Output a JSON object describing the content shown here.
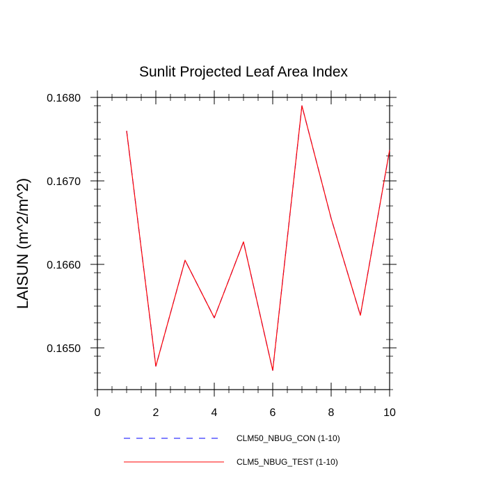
{
  "chart_data": {
    "type": "line",
    "title": "Sunlit Projected Leaf Area Index",
    "xlabel": "",
    "ylabel": "LAISUN  (m^2/m^2)",
    "xlim": [
      0,
      10
    ],
    "ylim": [
      0.1645,
      0.168
    ],
    "x_ticks": [
      0,
      2,
      4,
      6,
      8,
      10
    ],
    "x_tick_labels": [
      "0",
      "2",
      "4",
      "6",
      "8",
      "10"
    ],
    "y_ticks": [
      0.165,
      0.166,
      0.167,
      0.168
    ],
    "y_tick_labels": [
      "0.1650",
      "0.1660",
      "0.1670",
      "0.1680"
    ],
    "grid": false,
    "legend_position": "bottom",
    "x": [
      1,
      2,
      3,
      4,
      5,
      6,
      7,
      8,
      9,
      10
    ],
    "series": [
      {
        "name": "CLM50_NBUG_CON (1-10)",
        "color": "#0000ff",
        "dash": "dashed",
        "values": [
          0.1676,
          0.16478,
          0.16605,
          0.16536,
          0.16627,
          0.16473,
          0.1679,
          0.16655,
          0.16539,
          0.16737
        ]
      },
      {
        "name": "CLM5_NBUG_TEST (1-10)",
        "color": "#ff0000",
        "dash": "solid",
        "values": [
          0.1676,
          0.16478,
          0.16605,
          0.16536,
          0.16627,
          0.16473,
          0.1679,
          0.16655,
          0.16539,
          0.16737
        ]
      }
    ]
  }
}
